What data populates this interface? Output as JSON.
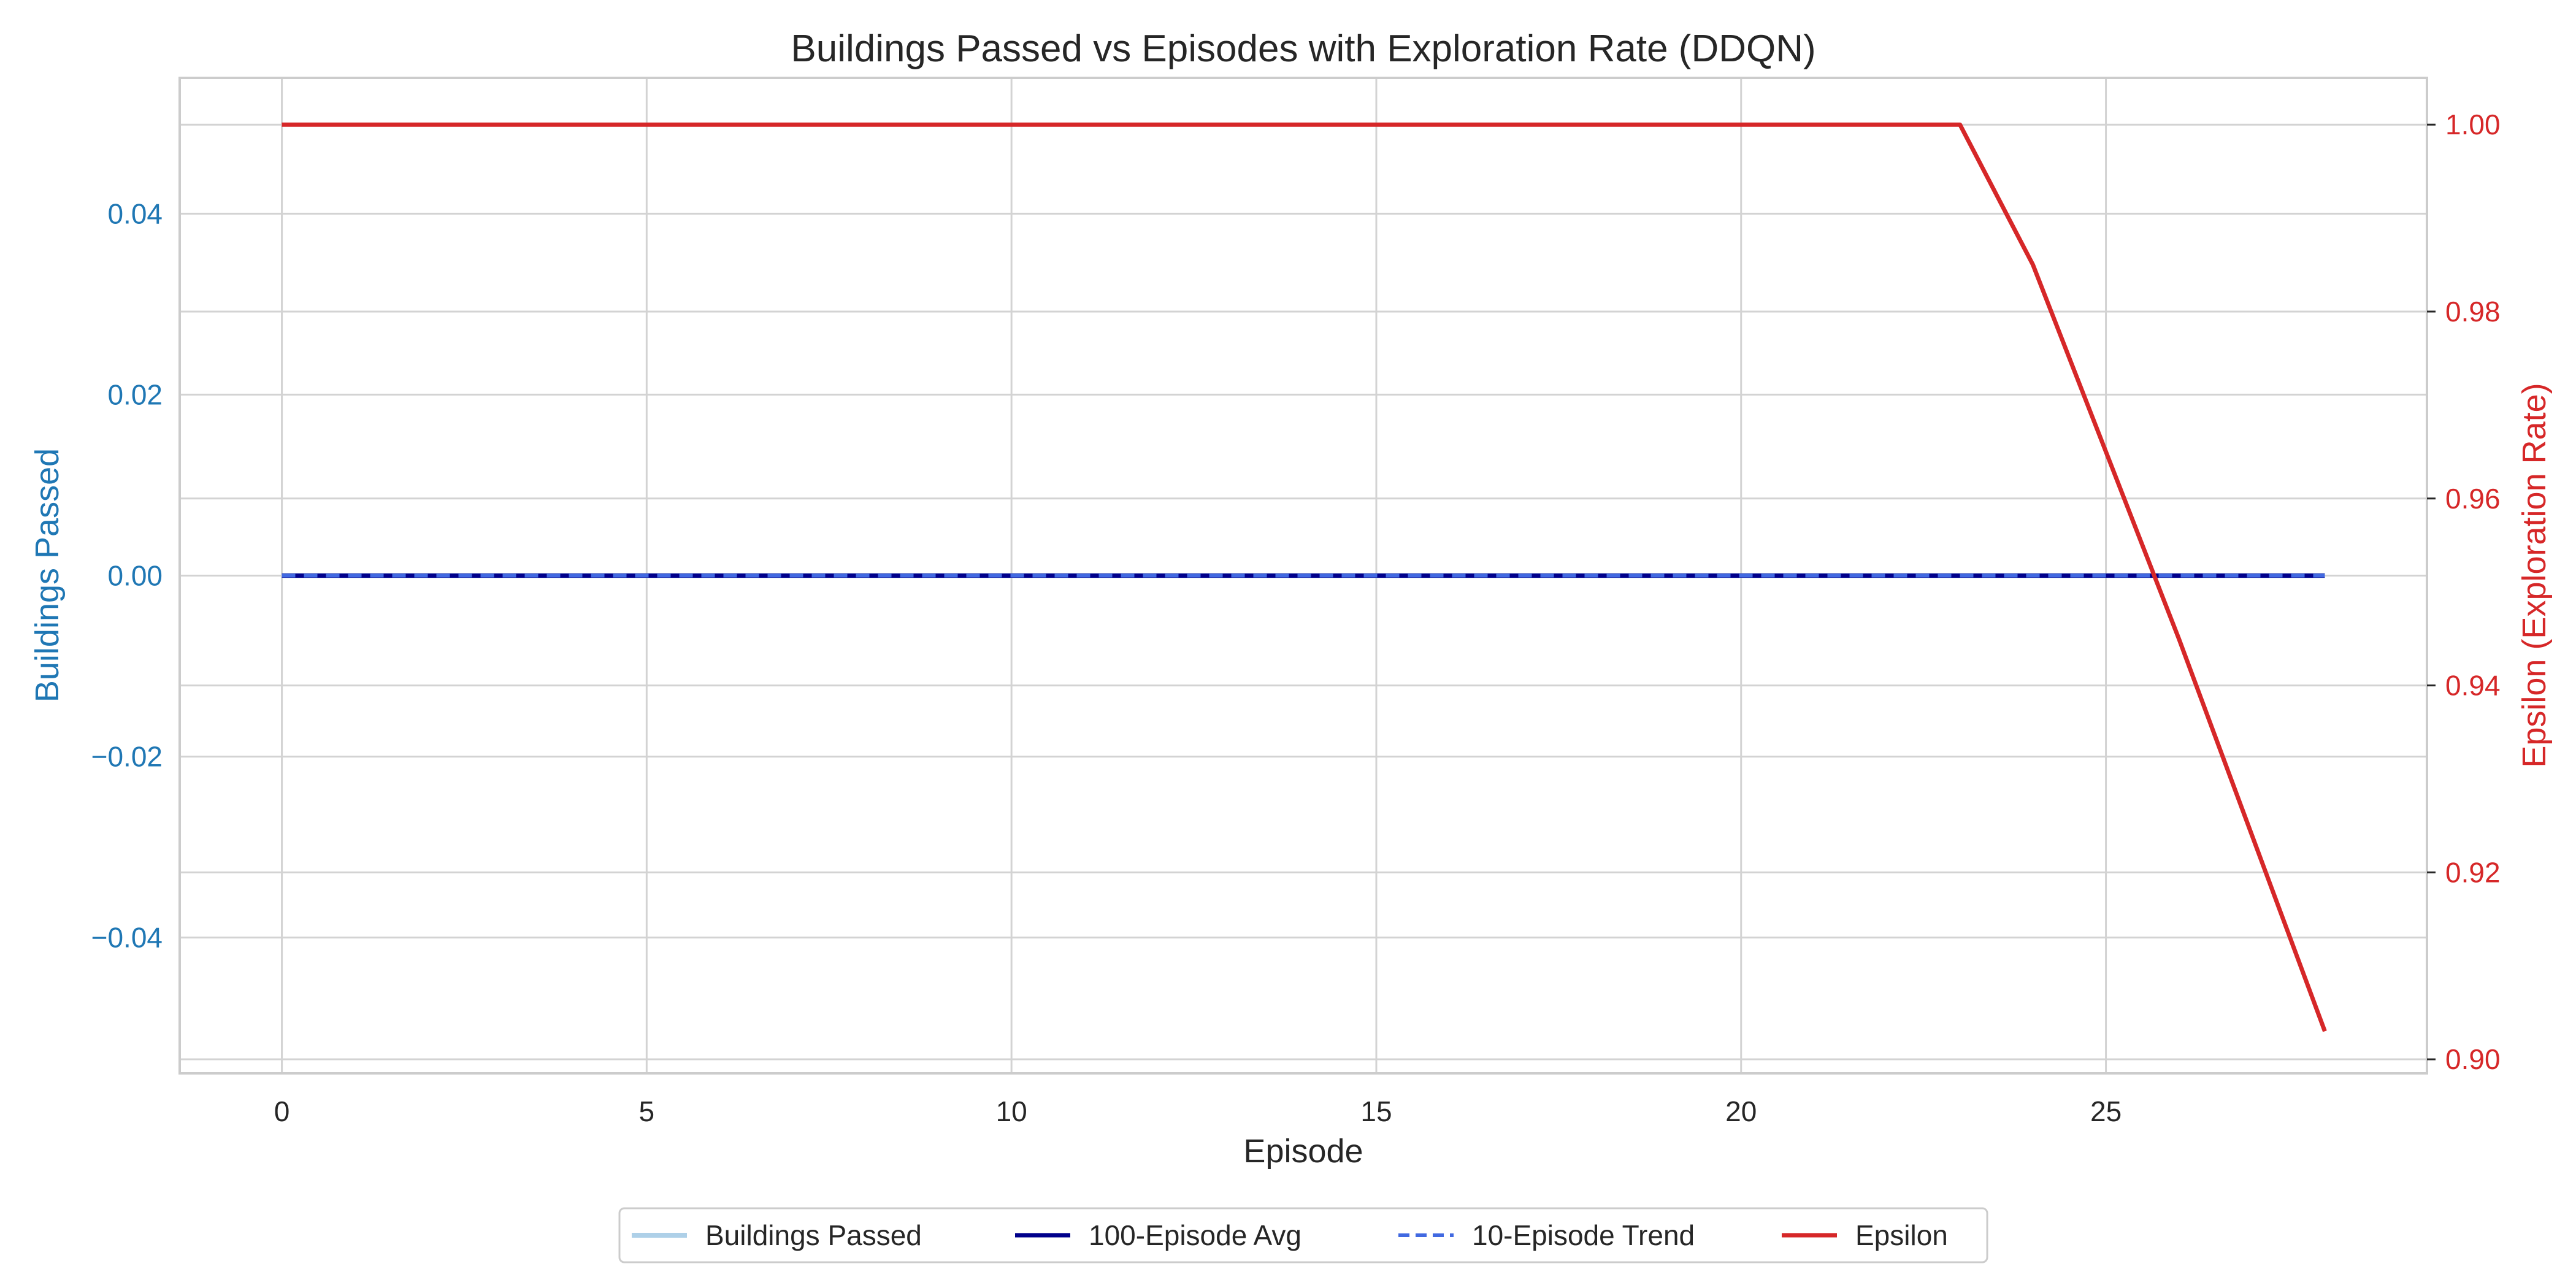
{
  "chart_data": {
    "type": "line",
    "title": "Buildings Passed vs Episodes with Exploration Rate (DDQN)",
    "xlabel": "Episode",
    "ylabel_left": "Buildings Passed",
    "ylabel_right": "Epsilon (Exploration Rate)",
    "xlim": [
      -1.4,
      29.4
    ],
    "ylim_left": [
      -0.055,
      0.055
    ],
    "ylim_right": [
      0.8985,
      1.005
    ],
    "x_ticks": [
      0,
      5,
      10,
      15,
      20,
      25
    ],
    "y_left_ticks": [
      -0.04,
      -0.02,
      0.0,
      0.02,
      0.04
    ],
    "y_left_tick_labels": [
      "−0.04",
      "−0.02",
      "0.00",
      "0.02",
      "0.04"
    ],
    "y_right_ticks": [
      0.9,
      0.92,
      0.94,
      0.96,
      0.98,
      1.0
    ],
    "y_right_tick_labels": [
      "0.90",
      "0.92",
      "0.94",
      "0.96",
      "0.98",
      "1.00"
    ],
    "grid": true,
    "legend_placement": "bottom-center",
    "left_axis_color": "#1f77b4",
    "right_axis_color": "#d62728",
    "series": [
      {
        "name": "Buildings Passed",
        "axis": "left",
        "color": "#aed0e8",
        "style": "solid",
        "x": [
          0,
          1,
          2,
          3,
          4,
          5,
          6,
          7,
          8,
          9,
          10,
          11,
          12,
          13,
          14,
          15,
          16,
          17,
          18,
          19,
          20,
          21,
          22,
          23,
          24,
          25,
          26,
          27,
          28
        ],
        "y": [
          0,
          0,
          0,
          0,
          0,
          0,
          0,
          0,
          0,
          0,
          0,
          0,
          0,
          0,
          0,
          0,
          0,
          0,
          0,
          0,
          0,
          0,
          0,
          0,
          0,
          0,
          0,
          0,
          0
        ]
      },
      {
        "name": "100-Episode Avg",
        "axis": "left",
        "color": "#00008b",
        "style": "solid",
        "x": [
          0,
          1,
          2,
          3,
          4,
          5,
          6,
          7,
          8,
          9,
          10,
          11,
          12,
          13,
          14,
          15,
          16,
          17,
          18,
          19,
          20,
          21,
          22,
          23,
          24,
          25,
          26,
          27,
          28
        ],
        "y": [
          0,
          0,
          0,
          0,
          0,
          0,
          0,
          0,
          0,
          0,
          0,
          0,
          0,
          0,
          0,
          0,
          0,
          0,
          0,
          0,
          0,
          0,
          0,
          0,
          0,
          0,
          0,
          0,
          0
        ]
      },
      {
        "name": "10-Episode Trend",
        "axis": "left",
        "color": "#4169e1",
        "style": "dashed",
        "x": [
          0,
          1,
          2,
          3,
          4,
          5,
          6,
          7,
          8,
          9,
          10,
          11,
          12,
          13,
          14,
          15,
          16,
          17,
          18,
          19,
          20,
          21,
          22,
          23,
          24,
          25,
          26,
          27,
          28
        ],
        "y": [
          0,
          0,
          0,
          0,
          0,
          0,
          0,
          0,
          0,
          0,
          0,
          0,
          0,
          0,
          0,
          0,
          0,
          0,
          0,
          0,
          0,
          0,
          0,
          0,
          0,
          0,
          0,
          0,
          0
        ]
      },
      {
        "name": "Epsilon",
        "axis": "right",
        "color": "#d62728",
        "style": "solid",
        "x": [
          0,
          1,
          2,
          3,
          4,
          5,
          6,
          7,
          8,
          9,
          10,
          11,
          12,
          13,
          14,
          15,
          16,
          17,
          18,
          19,
          20,
          21,
          22,
          23,
          24,
          25,
          26,
          27,
          28
        ],
        "y": [
          1,
          1,
          1,
          1,
          1,
          1,
          1,
          1,
          1,
          1,
          1,
          1,
          1,
          1,
          1,
          1,
          1,
          1,
          1,
          1,
          1,
          1,
          1,
          1,
          0.985,
          0.965,
          0.945,
          0.924,
          0.903
        ]
      }
    ]
  }
}
